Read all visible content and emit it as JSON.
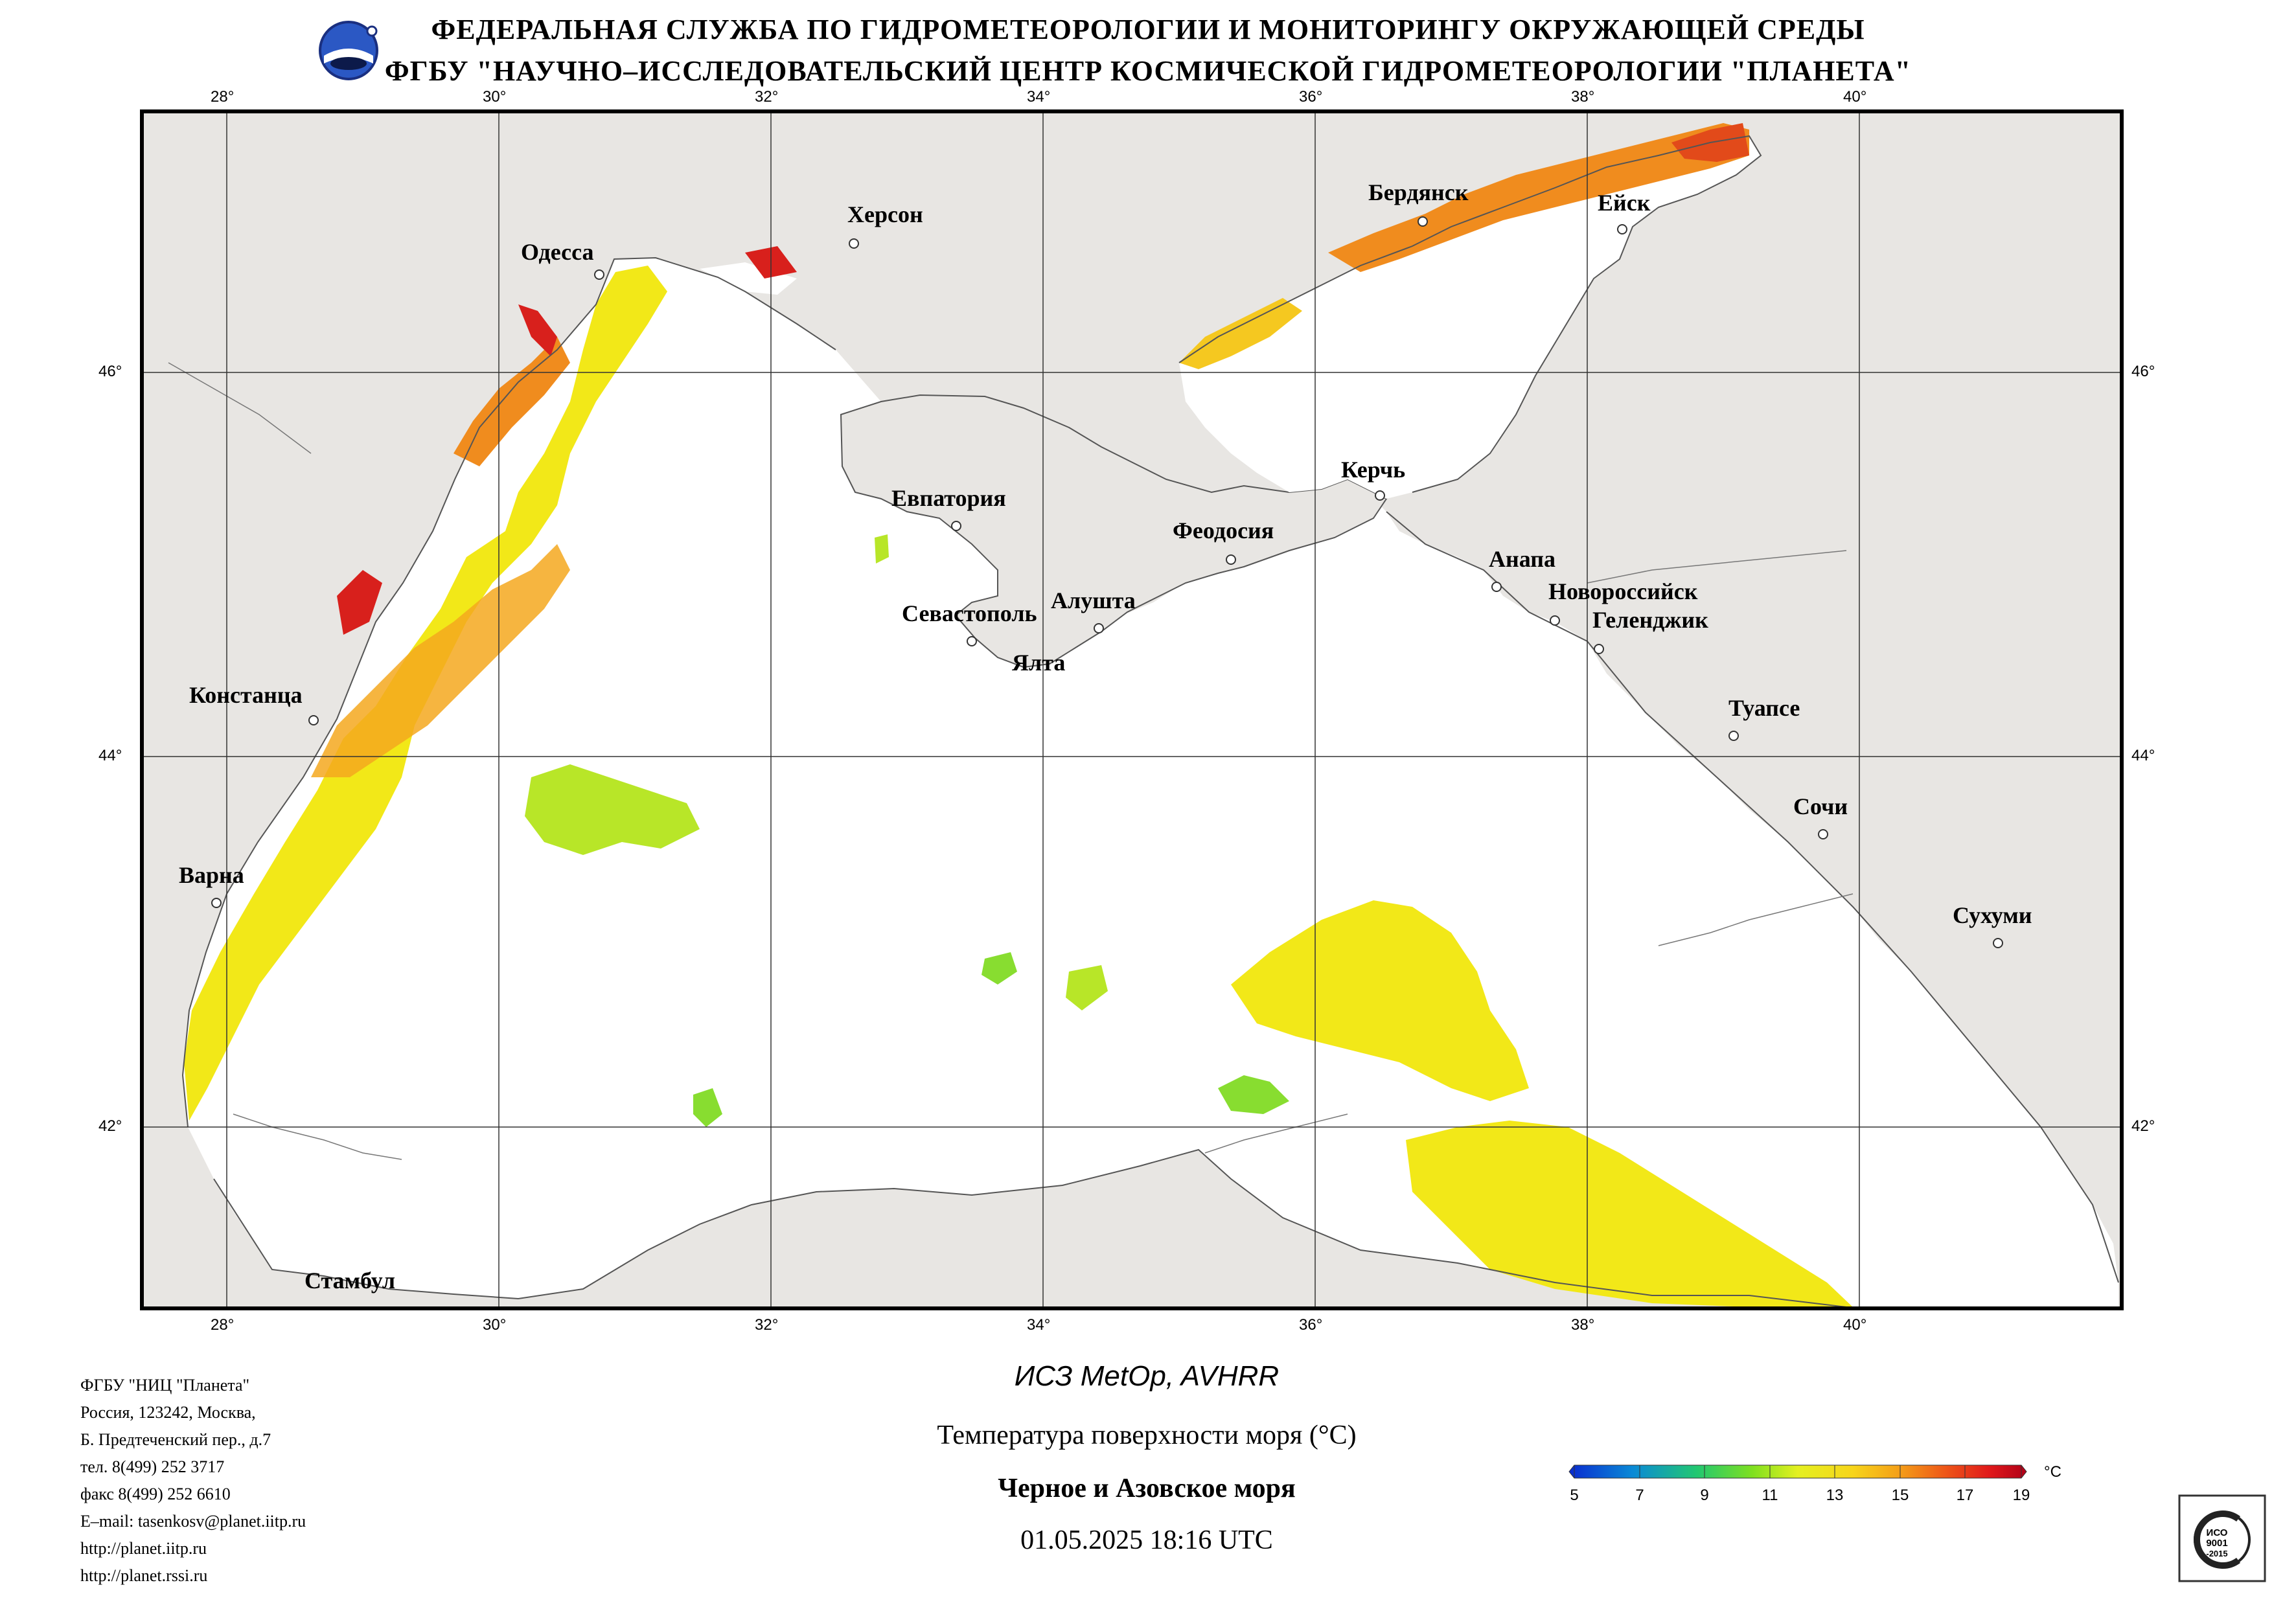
{
  "header": {
    "line1": "ФЕДЕРАЛЬНАЯ СЛУЖБА ПО ГИДРОМЕТЕОРОЛОГИИ И МОНИТОРИНГУ ОКРУЖАЮЩЕЙ СРЕДЫ",
    "line2": "ФГБУ \"НАУЧНО–ИССЛЕДОВАТЕЛЬСКИЙ ЦЕНТР КОСМИЧЕСКОЙ ГИДРОМЕТЕОРОЛОГИИ \"ПЛАНЕТА\""
  },
  "map": {
    "longitudes": [
      "28°",
      "30°",
      "32°",
      "34°",
      "36°",
      "38°",
      "40°"
    ],
    "latitudes": [
      "46°",
      "44°",
      "42°"
    ],
    "cities": [
      {
        "id": "odessa",
        "name": "Одесса"
      },
      {
        "id": "kherson",
        "name": "Херсон"
      },
      {
        "id": "berdyansk",
        "name": "Бердянск"
      },
      {
        "id": "yeysk",
        "name": "Ейск"
      },
      {
        "id": "kerch",
        "name": "Керчь"
      },
      {
        "id": "yevpatoria",
        "name": "Евпатория"
      },
      {
        "id": "feodosia",
        "name": "Феодосия"
      },
      {
        "id": "anapa",
        "name": "Анапа"
      },
      {
        "id": "novorossiysk",
        "name": "Новороссийск"
      },
      {
        "id": "gelendzhik",
        "name": "Геленджик"
      },
      {
        "id": "sevastopol",
        "name": "Севастополь"
      },
      {
        "id": "alushta",
        "name": "Алушта"
      },
      {
        "id": "yalta",
        "name": "Ялта"
      },
      {
        "id": "constanta",
        "name": "Констанца"
      },
      {
        "id": "tuapse",
        "name": "Туапсе"
      },
      {
        "id": "sochi",
        "name": "Сочи"
      },
      {
        "id": "varna",
        "name": "Варна"
      },
      {
        "id": "sukhumi",
        "name": "Сухуми"
      },
      {
        "id": "istanbul",
        "name": "Стамбул"
      }
    ]
  },
  "footer": {
    "org_lines": [
      "ФГБУ \"НИЦ \"Планета\"",
      "Россия, 123242, Москва,",
      "Б. Предтеченский пер., д.7",
      "тел. 8(499) 252 3717",
      "факс 8(499) 252 6610",
      "E–mail: tasenkosv@planet.iitp.ru",
      "http://planet.iitp.ru",
      "http://planet.rssi.ru"
    ],
    "satellite": "ИСЗ MetOp, AVHRR",
    "product": "Температура поверхности моря (°C)",
    "region": "Черное и Азовское моря",
    "datetime": "01.05.2025 18:16 UTC"
  },
  "legend": {
    "unit": "°C",
    "ticks": [
      "5",
      "7",
      "9",
      "11",
      "13",
      "15",
      "17",
      "19"
    ],
    "colors": [
      "#0a2ad0",
      "#0a8ad6",
      "#22c870",
      "#7ee020",
      "#e4f020",
      "#f7d51a",
      "#f4a018",
      "#ee5818",
      "#e0181a",
      "#b00018"
    ]
  },
  "colors": {
    "land": "#e8e6e3",
    "sea": "#ffffff",
    "sst_warm": "#f08c1e",
    "sst_mid": "#f2e818",
    "sst_hot": "#d8201c",
    "sst_cool": "#88dd30"
  }
}
